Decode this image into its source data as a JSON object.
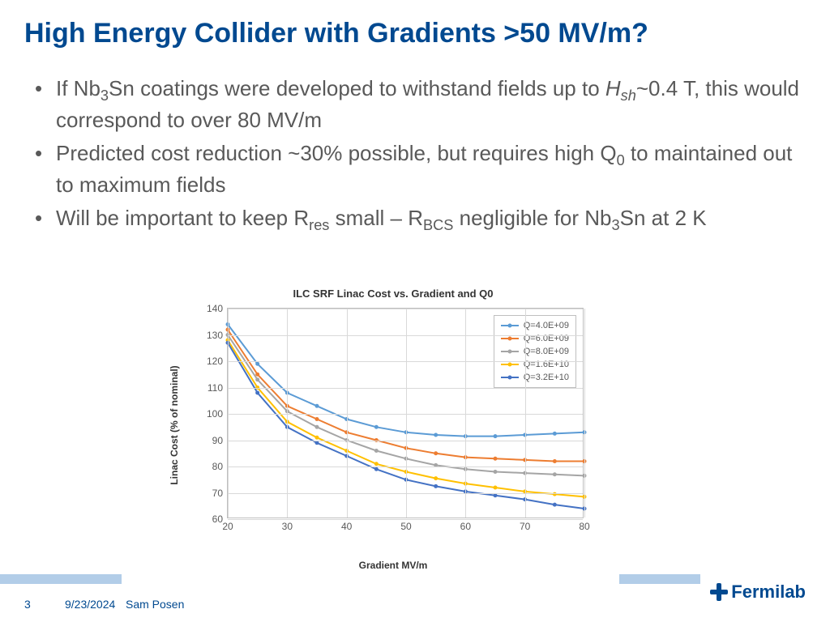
{
  "title": "High Energy Collider with Gradients >50 MV/m?",
  "bullets": [
    {
      "pre": "If Nb",
      "sub1": "3",
      "mid1": "Sn coatings were developed to withstand fields up to ",
      "ital": "H",
      "sub2": "sh",
      "post": "~0.4 T, this would correspond to over 80 MV/m"
    },
    {
      "pre": "Predicted cost reduction ~30% possible, but requires high Q",
      "sub1": "0",
      "post": " to maintained out to maximum fields"
    },
    {
      "pre": "Will be important to keep R",
      "sub1": "res",
      "mid1": " small – R",
      "sub2": "BCS",
      "mid2": " negligible for Nb",
      "sub3": "3",
      "post": "Sn at 2 K"
    }
  ],
  "chart": {
    "title": "ILC SRF Linac Cost vs. Gradient and Q0",
    "xlabel": "Gradient MV/m",
    "ylabel": "Linac Cost (% of nominal)",
    "xlim": [
      20,
      80
    ],
    "ylim": [
      60,
      140
    ],
    "xticks": [
      20,
      30,
      40,
      50,
      60,
      70,
      80
    ],
    "yticks": [
      60,
      70,
      80,
      90,
      100,
      110,
      120,
      130,
      140
    ],
    "xvals": [
      20,
      25,
      30,
      35,
      40,
      45,
      50,
      55,
      60,
      65,
      70,
      75,
      80
    ],
    "series": [
      {
        "label": "Q=4.0E+09",
        "color": "#5b9bd5",
        "y": [
          134,
          119,
          108,
          103,
          98,
          95,
          93,
          92,
          91.5,
          91.5,
          92,
          92.5,
          93
        ]
      },
      {
        "label": "Q=6.0E+09",
        "color": "#ed7d31",
        "y": [
          132,
          115,
          103,
          98,
          93,
          90,
          87,
          85,
          83.5,
          83,
          82.5,
          82,
          82
        ]
      },
      {
        "label": "Q=8.0E+09",
        "color": "#a5a5a5",
        "y": [
          130,
          113,
          101,
          95,
          90,
          86,
          83,
          80.5,
          79,
          78,
          77.5,
          77,
          76.5
        ]
      },
      {
        "label": "Q=1.6E+10",
        "color": "#ffc000",
        "y": [
          128,
          110,
          97,
          91,
          86,
          81,
          78,
          75.5,
          73.5,
          72,
          70.5,
          69.5,
          68.5
        ]
      },
      {
        "label": "Q=3.2E+10",
        "color": "#4472c4",
        "y": [
          127,
          108,
          95,
          89,
          84,
          79,
          75,
          72.5,
          70.5,
          69,
          67.5,
          65.5,
          64
        ]
      }
    ],
    "line_width": 2,
    "marker_size": 5,
    "grid_color": "#d9d9d9"
  },
  "footer": {
    "page": "3",
    "date": "9/23/2024",
    "author": "Sam Posen",
    "logo_text": "Fermilab"
  },
  "colors": {
    "title": "#004990",
    "body": "#595959"
  }
}
